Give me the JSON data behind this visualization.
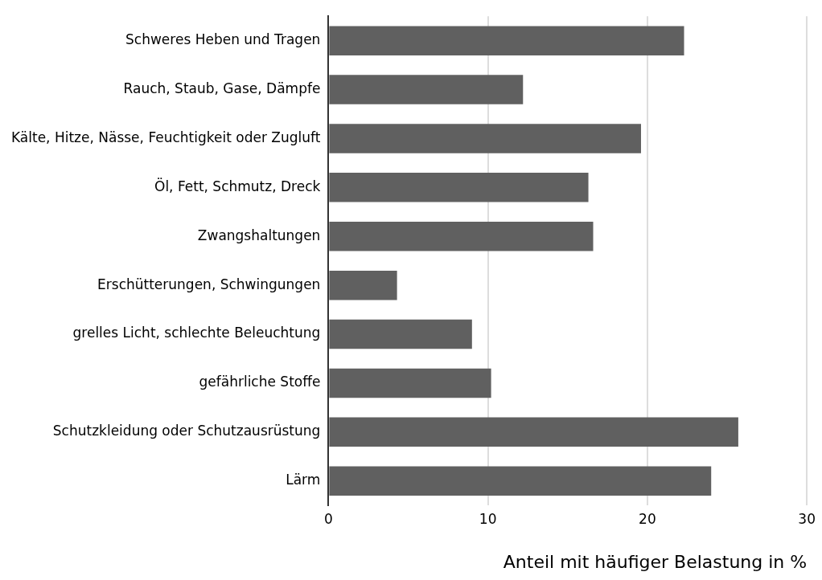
{
  "chart_data": {
    "type": "bar",
    "orientation": "horizontal",
    "xlabel": "Anteil mit häufiger Belastung in %",
    "categories": [
      "Schweres Heben und Tragen",
      "Rauch, Staub, Gase, Dämpfe",
      "Kälte, Hitze, Nässe, Feuchtigkeit oder Zugluft",
      "Öl, Fett, Schmutz, Dreck",
      "Zwangshaltungen",
      "Erschütterungen, Schwingungen",
      "grelles Licht, schlechte Beleuchtung",
      "gefährliche Stoffe",
      "Schutzkleidung oder Schutzausrüstung",
      "Lärm"
    ],
    "values": [
      22.3,
      12.2,
      19.6,
      16.3,
      16.6,
      4.3,
      9.0,
      10.2,
      25.7,
      24.0
    ],
    "color": "#606060",
    "xlim": [
      0,
      30
    ],
    "xticks": [
      0,
      10,
      20,
      30
    ],
    "grid": "x",
    "legend": false
  }
}
